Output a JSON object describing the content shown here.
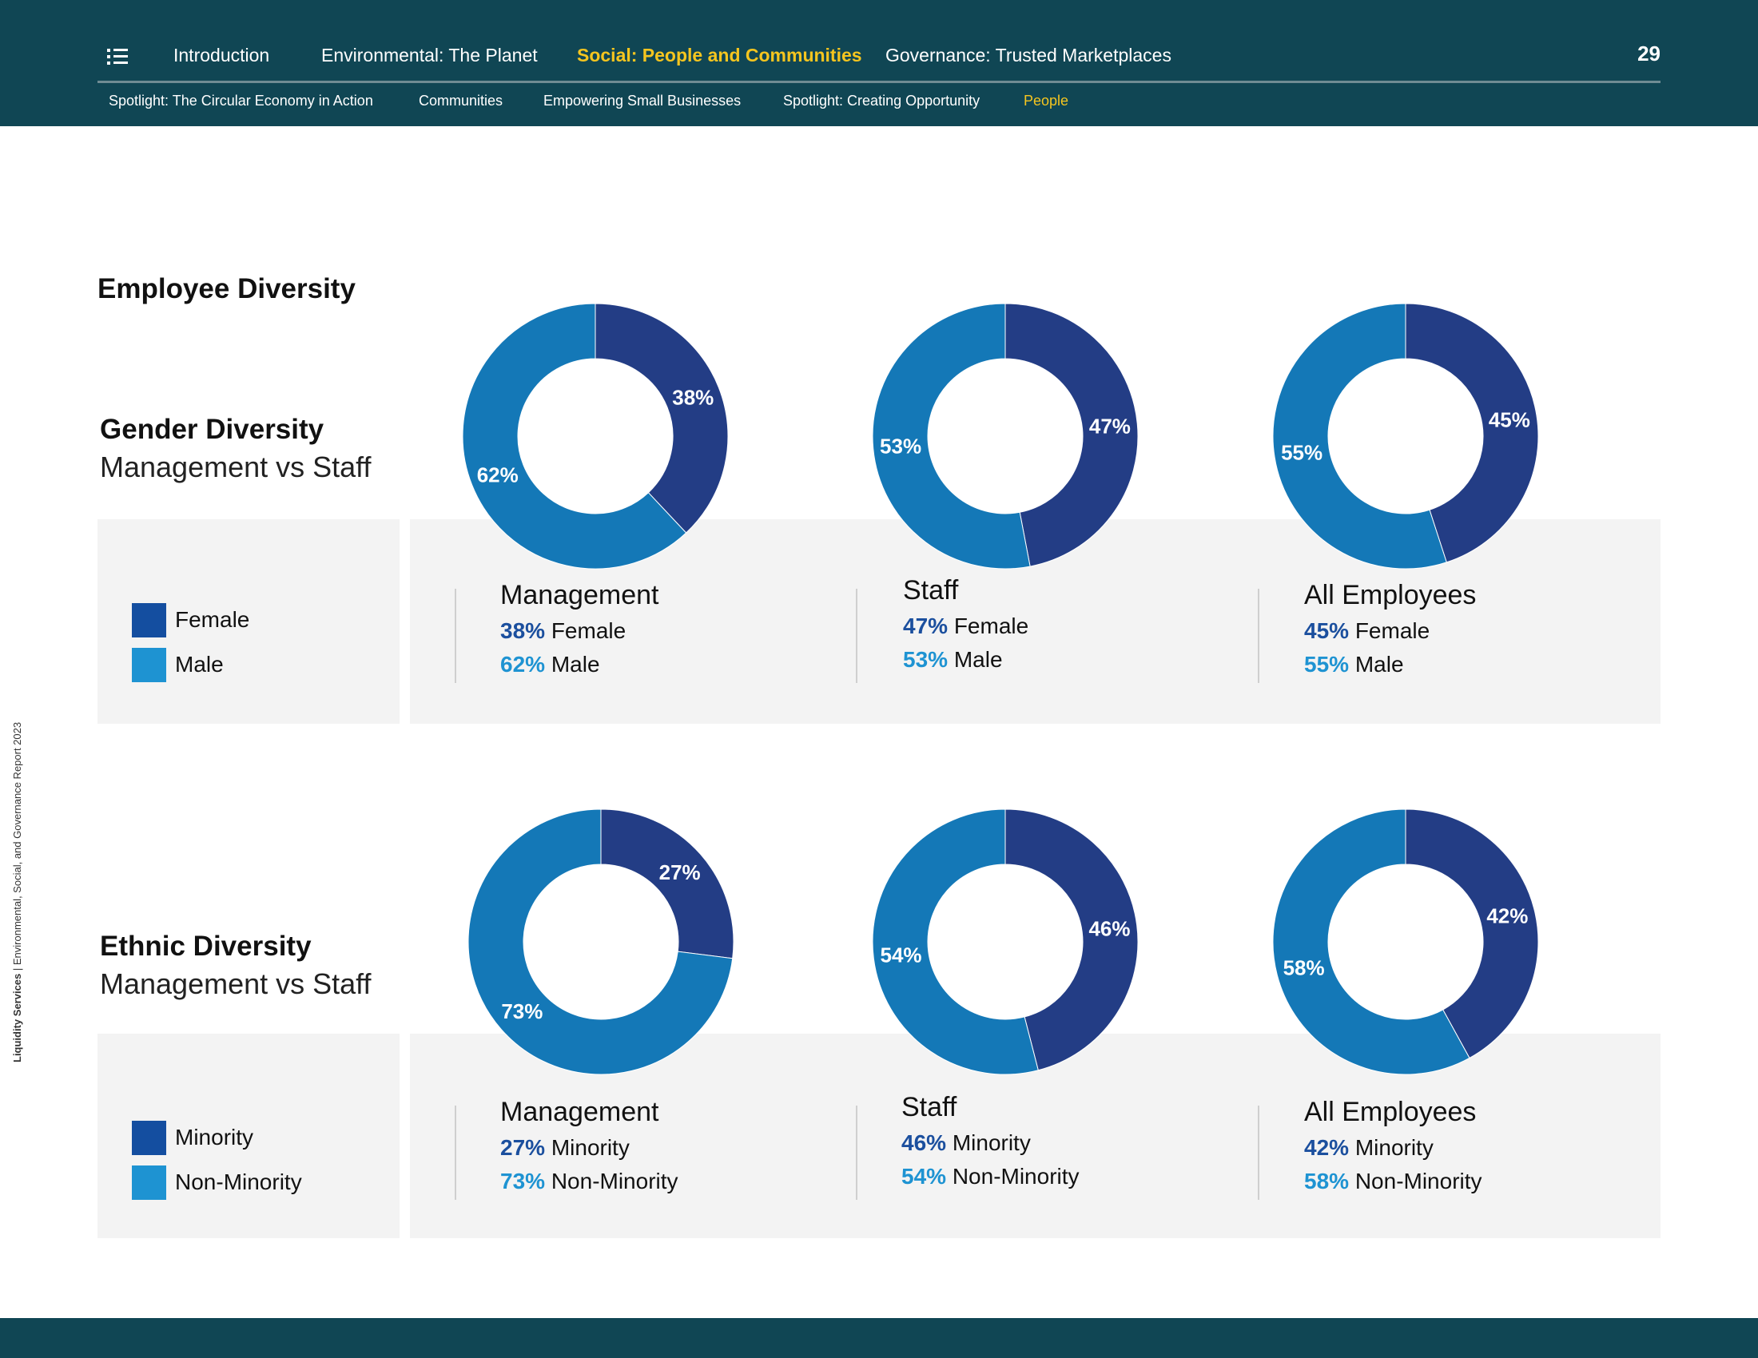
{
  "nav": {
    "main": [
      {
        "label": "Introduction",
        "active": false
      },
      {
        "label": "Environmental: The Planet",
        "active": false
      },
      {
        "label": "Social: People and Communities",
        "active": true
      },
      {
        "label": "Governance: Trusted Marketplaces",
        "active": false
      }
    ],
    "sub": [
      {
        "label": "Spotlight: The Circular Economy in Action",
        "active": false
      },
      {
        "label": "Communities",
        "active": false
      },
      {
        "label": "Empowering Small Businesses",
        "active": false
      },
      {
        "label": "Spotlight: Creating Opportunity",
        "active": false
      },
      {
        "label": "People",
        "active": true
      }
    ],
    "page_number": "29"
  },
  "side_caption": {
    "brand": "Liquidity Services",
    "rest": " | Environmental, Social, and Governance Report 2023"
  },
  "colors": {
    "nav_bg": "#104654",
    "accent_yellow": "#F5C51F",
    "donut_dark": "#233D85",
    "donut_light": "#1478B7",
    "legend_dark": "#144EA0",
    "legend_light": "#1E93D2",
    "pct_dark": "#1B4F9E",
    "pct_light": "#1E93D2"
  },
  "page_title": "Employee Diversity",
  "sections": [
    {
      "title": "Gender Diversity",
      "subtitle": "Management vs Staff",
      "legend": [
        "Female",
        "Male"
      ],
      "captions": [
        {
          "title": "Management",
          "line1_pct": "38%",
          "line1_label": " Female",
          "line2_pct": "62%",
          "line2_label": " Male"
        },
        {
          "title": "Staff",
          "line1_pct": "47%",
          "line1_label": " Female",
          "line2_pct": "53%",
          "line2_label": " Male"
        },
        {
          "title": "All Employees",
          "line1_pct": "45%",
          "line1_label": " Female",
          "line2_pct": "55%",
          "line2_label": " Male"
        }
      ]
    },
    {
      "title": "Ethnic Diversity",
      "subtitle": "Management vs Staff",
      "legend": [
        "Minority",
        "Non-Minority"
      ],
      "captions": [
        {
          "title": "Management",
          "line1_pct": "27%",
          "line1_label": " Minority",
          "line2_pct": "73%",
          "line2_label": " Non-Minority"
        },
        {
          "title": "Staff",
          "line1_pct": "46%",
          "line1_label": " Minority",
          "line2_pct": "54%",
          "line2_label": " Non-Minority"
        },
        {
          "title": "All Employees",
          "line1_pct": "42%",
          "line1_label": " Minority",
          "line2_pct": "58%",
          "line2_label": " Non-Minority"
        }
      ]
    }
  ],
  "chart_data": [
    {
      "type": "pie",
      "categories": [
        "Female",
        "Male"
      ],
      "values": [
        38,
        62
      ],
      "labels": [
        "38%",
        "62%"
      ],
      "title": "Management"
    },
    {
      "type": "pie",
      "categories": [
        "Female",
        "Male"
      ],
      "values": [
        47,
        53
      ],
      "labels": [
        "47%",
        "53%"
      ],
      "title": "Staff"
    },
    {
      "type": "pie",
      "categories": [
        "Female",
        "Male"
      ],
      "values": [
        45,
        55
      ],
      "labels": [
        "45%",
        "55%"
      ],
      "title": "All Employees"
    },
    {
      "type": "pie",
      "categories": [
        "Minority",
        "Non-Minority"
      ],
      "values": [
        27,
        73
      ],
      "labels": [
        "27%",
        "73%"
      ],
      "title": "Management"
    },
    {
      "type": "pie",
      "categories": [
        "Minority",
        "Non-Minority"
      ],
      "values": [
        46,
        54
      ],
      "labels": [
        "46%",
        "54%"
      ],
      "title": "Staff"
    },
    {
      "type": "pie",
      "categories": [
        "Minority",
        "Non-Minority"
      ],
      "values": [
        42,
        58
      ],
      "labels": [
        "42%",
        "58%"
      ],
      "title": "All Employees"
    }
  ]
}
